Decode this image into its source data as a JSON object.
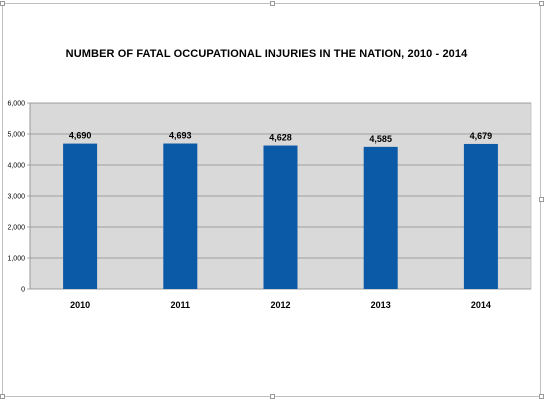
{
  "chart_data": {
    "type": "bar",
    "title": "NUMBER OF FATAL OCCUPATIONAL INJURIES IN THE NATION, 2010 - 2014",
    "xlabel": "",
    "ylabel": "",
    "categories": [
      "2010",
      "2011",
      "2012",
      "2013",
      "2014"
    ],
    "values": [
      4690,
      4693,
      4628,
      4585,
      4679
    ],
    "data_labels": [
      "4,690",
      "4,693",
      "4,628",
      "4,585",
      "4,679"
    ],
    "ylim": [
      0,
      6000
    ],
    "yticks": [
      0,
      1000,
      2000,
      3000,
      4000,
      5000,
      6000
    ],
    "ytick_labels": [
      "0",
      "1,000",
      "2,000",
      "3,000",
      "4,000",
      "5,000",
      "6,000"
    ],
    "grid": true,
    "legend": "none",
    "colors": {
      "bar": "#0a5aa8",
      "plot_background": "#d9d9d9",
      "gridline": "#8c8c8c"
    }
  }
}
